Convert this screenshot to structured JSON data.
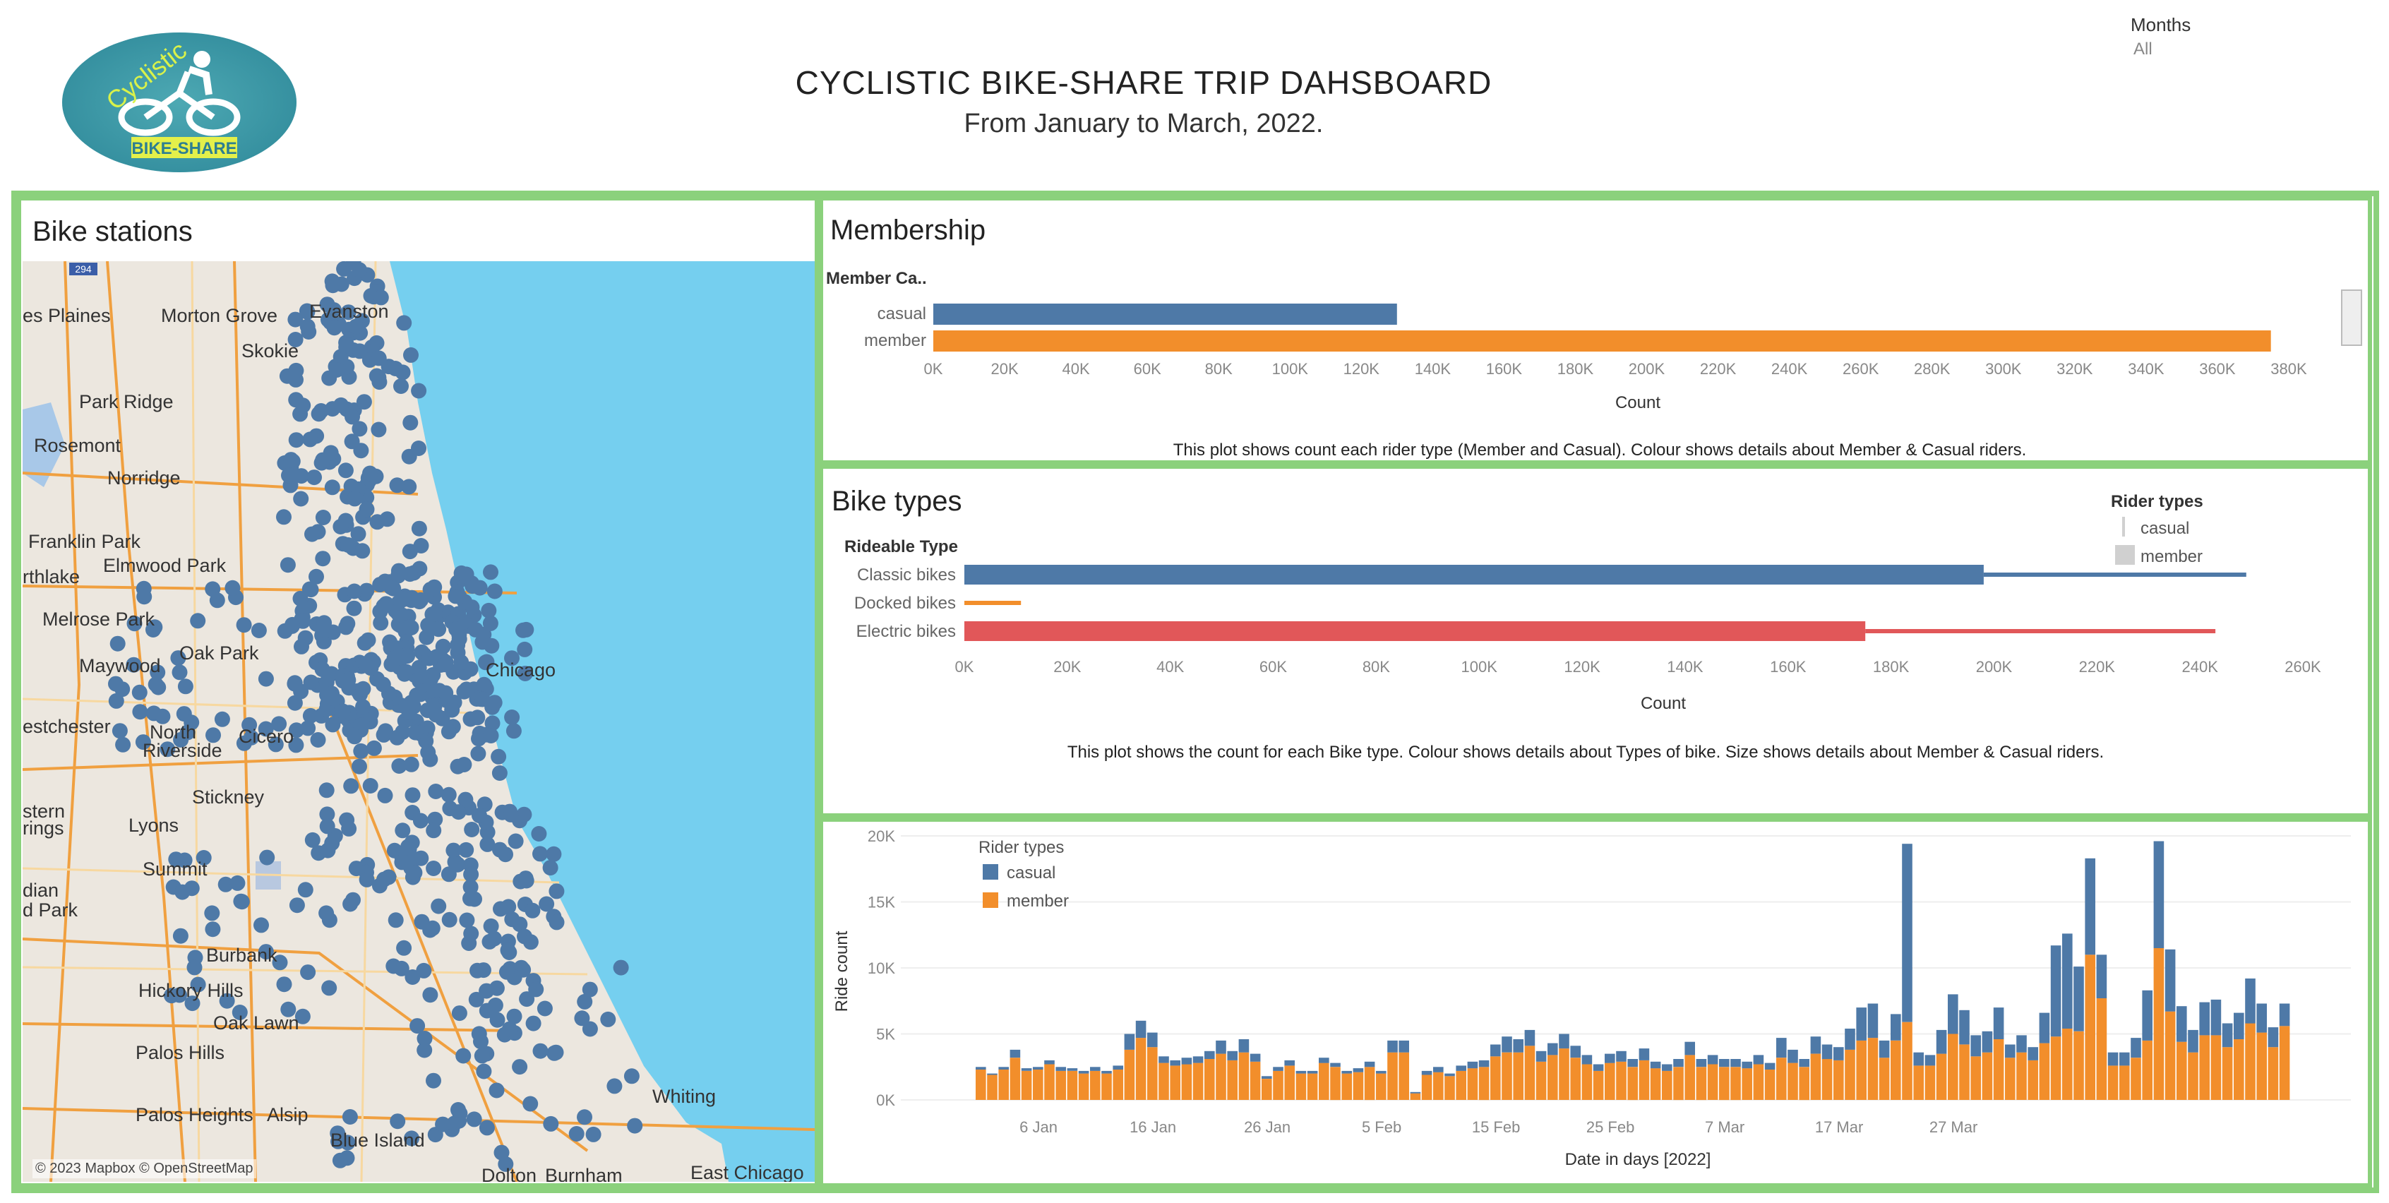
{
  "header": {
    "title": "CYCLISTIC BIKE-SHARE TRIP DAHSBOARD",
    "subtitle": "From January to March, 2022.",
    "logo_text_top": "Cyclistic",
    "logo_text_bottom": "BIKE-SHARE",
    "filter_label": "Months",
    "filter_value": "All"
  },
  "colors": {
    "casual": "#4e79a7",
    "member": "#f28e2b",
    "electric": "#e15759",
    "border": "#8bd17c",
    "water": "#75cfef",
    "land": "#ece7df"
  },
  "map": {
    "title": "Bike stations",
    "attribution": "© 2023 Mapbox © OpenStreetMap",
    "labels": [
      "es Plaines",
      "Morton Grove",
      "Evanston",
      "Skokie",
      "Park Ridge",
      "Rosemont",
      "Norridge",
      "Franklin Park",
      "Elmwood Park",
      "rthlake",
      "Melrose Park",
      "Oak Park",
      "Maywood",
      "Chicago",
      "estchester",
      "North",
      "Riverside",
      "Cicero",
      "Stickney",
      "stern",
      "rings",
      "Lyons",
      "Summit",
      "dian",
      "d Park",
      "Burbank",
      "Hickory Hills",
      "Oak Lawn",
      "Palos Hills",
      "Palos Heights",
      "Alsip",
      "Blue Island",
      "Whiting",
      "East Chicago",
      "Dolton",
      "Burnham"
    ],
    "highway_badge": "294"
  },
  "membership": {
    "title": "Membership",
    "header": "Member Ca..",
    "x_title": "Count",
    "caption": "This plot shows count each rider type (Member and Casual). Colour shows details about Member & Casual riders.",
    "chart_data": {
      "type": "bar",
      "orientation": "horizontal",
      "categories": [
        "casual",
        "member"
      ],
      "values": [
        130000,
        375000
      ],
      "xlim": [
        0,
        380000
      ],
      "xticks": [
        "0K",
        "20K",
        "40K",
        "60K",
        "80K",
        "100K",
        "120K",
        "140K",
        "160K",
        "180K",
        "200K",
        "220K",
        "240K",
        "260K",
        "280K",
        "300K",
        "320K",
        "340K",
        "360K",
        "380K"
      ],
      "xlabel": "Count"
    }
  },
  "bike_types": {
    "title": "Bike types",
    "header": "Rideable Type",
    "x_title": "Count",
    "legend_title": "Rider types",
    "legend": [
      "casual",
      "member"
    ],
    "caption": "This plot shows the count for each Bike type. Colour shows details about Types of bike.  Size shows details about Member & Casual riders.",
    "chart_data": {
      "type": "bar",
      "orientation": "horizontal",
      "categories": [
        "Classic bikes",
        "Docked bikes",
        "Electric bikes"
      ],
      "series": [
        {
          "name": "member",
          "values": [
            198000,
            0,
            175000
          ]
        },
        {
          "name": "casual",
          "values": [
            51000,
            11000,
            68000
          ]
        }
      ],
      "totals": [
        249000,
        11000,
        243000
      ],
      "xlim": [
        0,
        260000
      ],
      "xticks": [
        "0K",
        "20K",
        "40K",
        "60K",
        "80K",
        "100K",
        "120K",
        "140K",
        "160K",
        "180K",
        "200K",
        "220K",
        "240K",
        "260K"
      ],
      "xlabel": "Count"
    }
  },
  "daily": {
    "y_title": "Ride count",
    "x_title": "Date in days [2022]",
    "legend_title": "Rider types",
    "legend": [
      "casual",
      "member"
    ],
    "chart_data": {
      "type": "bar",
      "stacked": true,
      "x_start": "1 Jan",
      "xticks": [
        "6 Jan",
        "16 Jan",
        "26 Jan",
        "5 Feb",
        "15 Feb",
        "25 Feb",
        "7 Mar",
        "17 Mar",
        "27 Mar"
      ],
      "yticks": [
        "0K",
        "5K",
        "10K",
        "15K",
        "20K"
      ],
      "ylim": [
        0,
        20000
      ],
      "xlabel": "Date in days [2022]",
      "ylabel": "Ride count",
      "series": [
        {
          "name": "member",
          "values": [
            2300,
            1900,
            2300,
            3200,
            2200,
            2300,
            2700,
            2200,
            2200,
            2000,
            2200,
            2000,
            2300,
            3800,
            4700,
            4000,
            2800,
            2600,
            2700,
            2800,
            3100,
            3500,
            3000,
            3600,
            2900,
            1600,
            2200,
            2600,
            2000,
            2000,
            2800,
            2500,
            2000,
            2100,
            2500,
            2000,
            3600,
            3600,
            500,
            1900,
            2100,
            1800,
            2200,
            2400,
            2500,
            3300,
            3600,
            3600,
            4100,
            2900,
            3400,
            3900,
            3200,
            2700,
            2200,
            2800,
            2900,
            2500,
            3000,
            2400,
            2200,
            2500,
            3400,
            2500,
            2700,
            2500,
            2500,
            2400,
            2700,
            2300,
            3200,
            2800,
            2500,
            3500,
            3100,
            3000,
            3800,
            4500,
            4700,
            3200,
            4500,
            5900,
            2600,
            2600,
            3500,
            5000,
            4200,
            3300,
            3600,
            4600,
            3200,
            3600,
            3000,
            4300,
            4800,
            5400,
            5200,
            11000,
            7700,
            2600,
            2600,
            3200,
            4500,
            11500,
            6700,
            4400,
            3600,
            4900,
            4900,
            4000,
            4600,
            5800,
            5100,
            4000,
            5600
          ]
        },
        {
          "name": "casual",
          "values": [
            200,
            100,
            200,
            600,
            200,
            200,
            300,
            300,
            200,
            200,
            300,
            200,
            300,
            1200,
            1300,
            1100,
            500,
            400,
            500,
            500,
            600,
            1000,
            700,
            1000,
            600,
            200,
            300,
            400,
            200,
            200,
            400,
            300,
            200,
            300,
            400,
            200,
            900,
            900,
            100,
            300,
            400,
            200,
            400,
            500,
            500,
            900,
            1200,
            1000,
            1200,
            800,
            900,
            1100,
            900,
            700,
            500,
            700,
            800,
            600,
            900,
            500,
            500,
            600,
            1000,
            600,
            700,
            600,
            600,
            500,
            700,
            500,
            1500,
            1000,
            600,
            1300,
            1100,
            1000,
            1600,
            2500,
            2600,
            1300,
            2000,
            13500,
            1000,
            800,
            1800,
            3000,
            2600,
            1600,
            1600,
            2400,
            1000,
            1300,
            1000,
            2300,
            6900,
            7200,
            4900,
            7300,
            3300,
            1000,
            1000,
            1500,
            3800,
            8100,
            4700,
            2700,
            1700,
            2500,
            2700,
            1800,
            2000,
            3400,
            2200,
            1500,
            1700
          ]
        }
      ]
    }
  }
}
